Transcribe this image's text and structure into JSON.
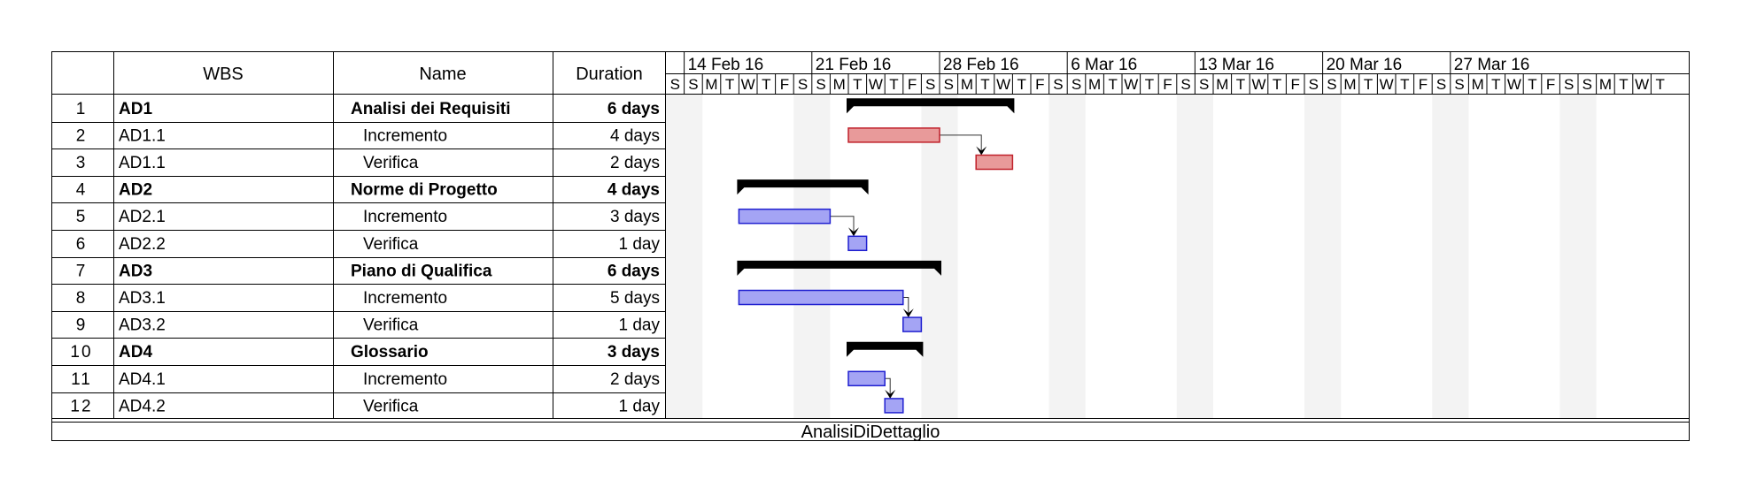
{
  "chart_data": {
    "type": "gantt",
    "columns": {
      "id": "",
      "wbs": "WBS",
      "name": "Name",
      "duration": "Duration"
    },
    "timeline": {
      "start_date": "2016-02-13",
      "weeks": [
        "14 Feb 16",
        "21 Feb 16",
        "28 Feb 16",
        "6 Mar 16",
        "13 Mar 16",
        "20 Mar 16",
        "27 Mar 16"
      ],
      "day_letters": [
        "S",
        "S",
        "M",
        "T",
        "W",
        "T",
        "F",
        "S",
        "S",
        "M",
        "T",
        "W",
        "T",
        "F",
        "S",
        "S",
        "M",
        "T",
        "W",
        "T",
        "F",
        "S",
        "S",
        "M",
        "T",
        "W",
        "T",
        "F",
        "S",
        "S",
        "M",
        "T",
        "W",
        "T",
        "F",
        "S",
        "S",
        "M",
        "T",
        "W",
        "T",
        "F",
        "S",
        "S",
        "M",
        "T",
        "W",
        "T",
        "F",
        "S",
        "S",
        "M",
        "T",
        "W",
        "T"
      ]
    },
    "tasks": [
      {
        "id": "1",
        "wbs": "AD1",
        "name": "Analisi dei Requisiti",
        "duration": "6 days",
        "summary": true,
        "start": "2016-02-23",
        "end": "2016-03-03"
      },
      {
        "id": "2",
        "wbs": "AD1.1",
        "name": "Incremento",
        "duration": "4 days",
        "summary": false,
        "start": "2016-02-23",
        "end": "2016-02-28",
        "color": "#e89a9a",
        "border": "#c0202a"
      },
      {
        "id": "3",
        "wbs": "AD1.1",
        "name": "Verifica",
        "duration": "2 days",
        "summary": false,
        "start": "2016-03-01",
        "end": "2016-03-03",
        "color": "#e89a9a",
        "border": "#c0202a"
      },
      {
        "id": "4",
        "wbs": "AD2",
        "name": "Norme di Progetto",
        "duration": "4 days",
        "summary": true,
        "start": "2016-02-17",
        "end": "2016-02-24"
      },
      {
        "id": "5",
        "wbs": "AD2.1",
        "name": "Incremento",
        "duration": "3 days",
        "summary": false,
        "start": "2016-02-17",
        "end": "2016-02-22",
        "color": "#a4a4f4",
        "border": "#2020d0"
      },
      {
        "id": "6",
        "wbs": "AD2.2",
        "name": "Verifica",
        "duration": "1 day",
        "summary": false,
        "start": "2016-02-23",
        "end": "2016-02-24",
        "color": "#a4a4f4",
        "border": "#2020d0"
      },
      {
        "id": "7",
        "wbs": "AD3",
        "name": "Piano di Qualifica",
        "duration": "6 days",
        "summary": true,
        "start": "2016-02-17",
        "end": "2016-02-28"
      },
      {
        "id": "8",
        "wbs": "AD3.1",
        "name": "Incremento",
        "duration": "5 days",
        "summary": false,
        "start": "2016-02-17",
        "end": "2016-02-26",
        "color": "#a4a4f4",
        "border": "#2020d0"
      },
      {
        "id": "9",
        "wbs": "AD3.2",
        "name": "Verifica",
        "duration": "1 day",
        "summary": false,
        "start": "2016-02-26",
        "end": "2016-02-27",
        "color": "#a4a4f4",
        "border": "#2020d0"
      },
      {
        "id": "10",
        "wbs": "AD4",
        "name": "Glossario",
        "duration": "3 days",
        "summary": true,
        "start": "2016-02-23",
        "end": "2016-02-27"
      },
      {
        "id": "11",
        "wbs": "AD4.1",
        "name": "Incremento",
        "duration": "2 days",
        "summary": false,
        "start": "2016-02-23",
        "end": "2016-02-25",
        "color": "#a4a4f4",
        "border": "#2020d0"
      },
      {
        "id": "12",
        "wbs": "AD4.2",
        "name": "Verifica",
        "duration": "1 day",
        "summary": false,
        "start": "2016-02-25",
        "end": "2016-02-26",
        "color": "#a4a4f4",
        "border": "#2020d0"
      }
    ],
    "dependencies": [
      {
        "from": "2",
        "to": "3"
      },
      {
        "from": "5",
        "to": "6"
      },
      {
        "from": "8",
        "to": "9"
      },
      {
        "from": "11",
        "to": "12"
      }
    ],
    "footer": "AnalisiDiDettaglio",
    "weekend_color": "#f3f3f3",
    "summary_color": "#000000"
  }
}
